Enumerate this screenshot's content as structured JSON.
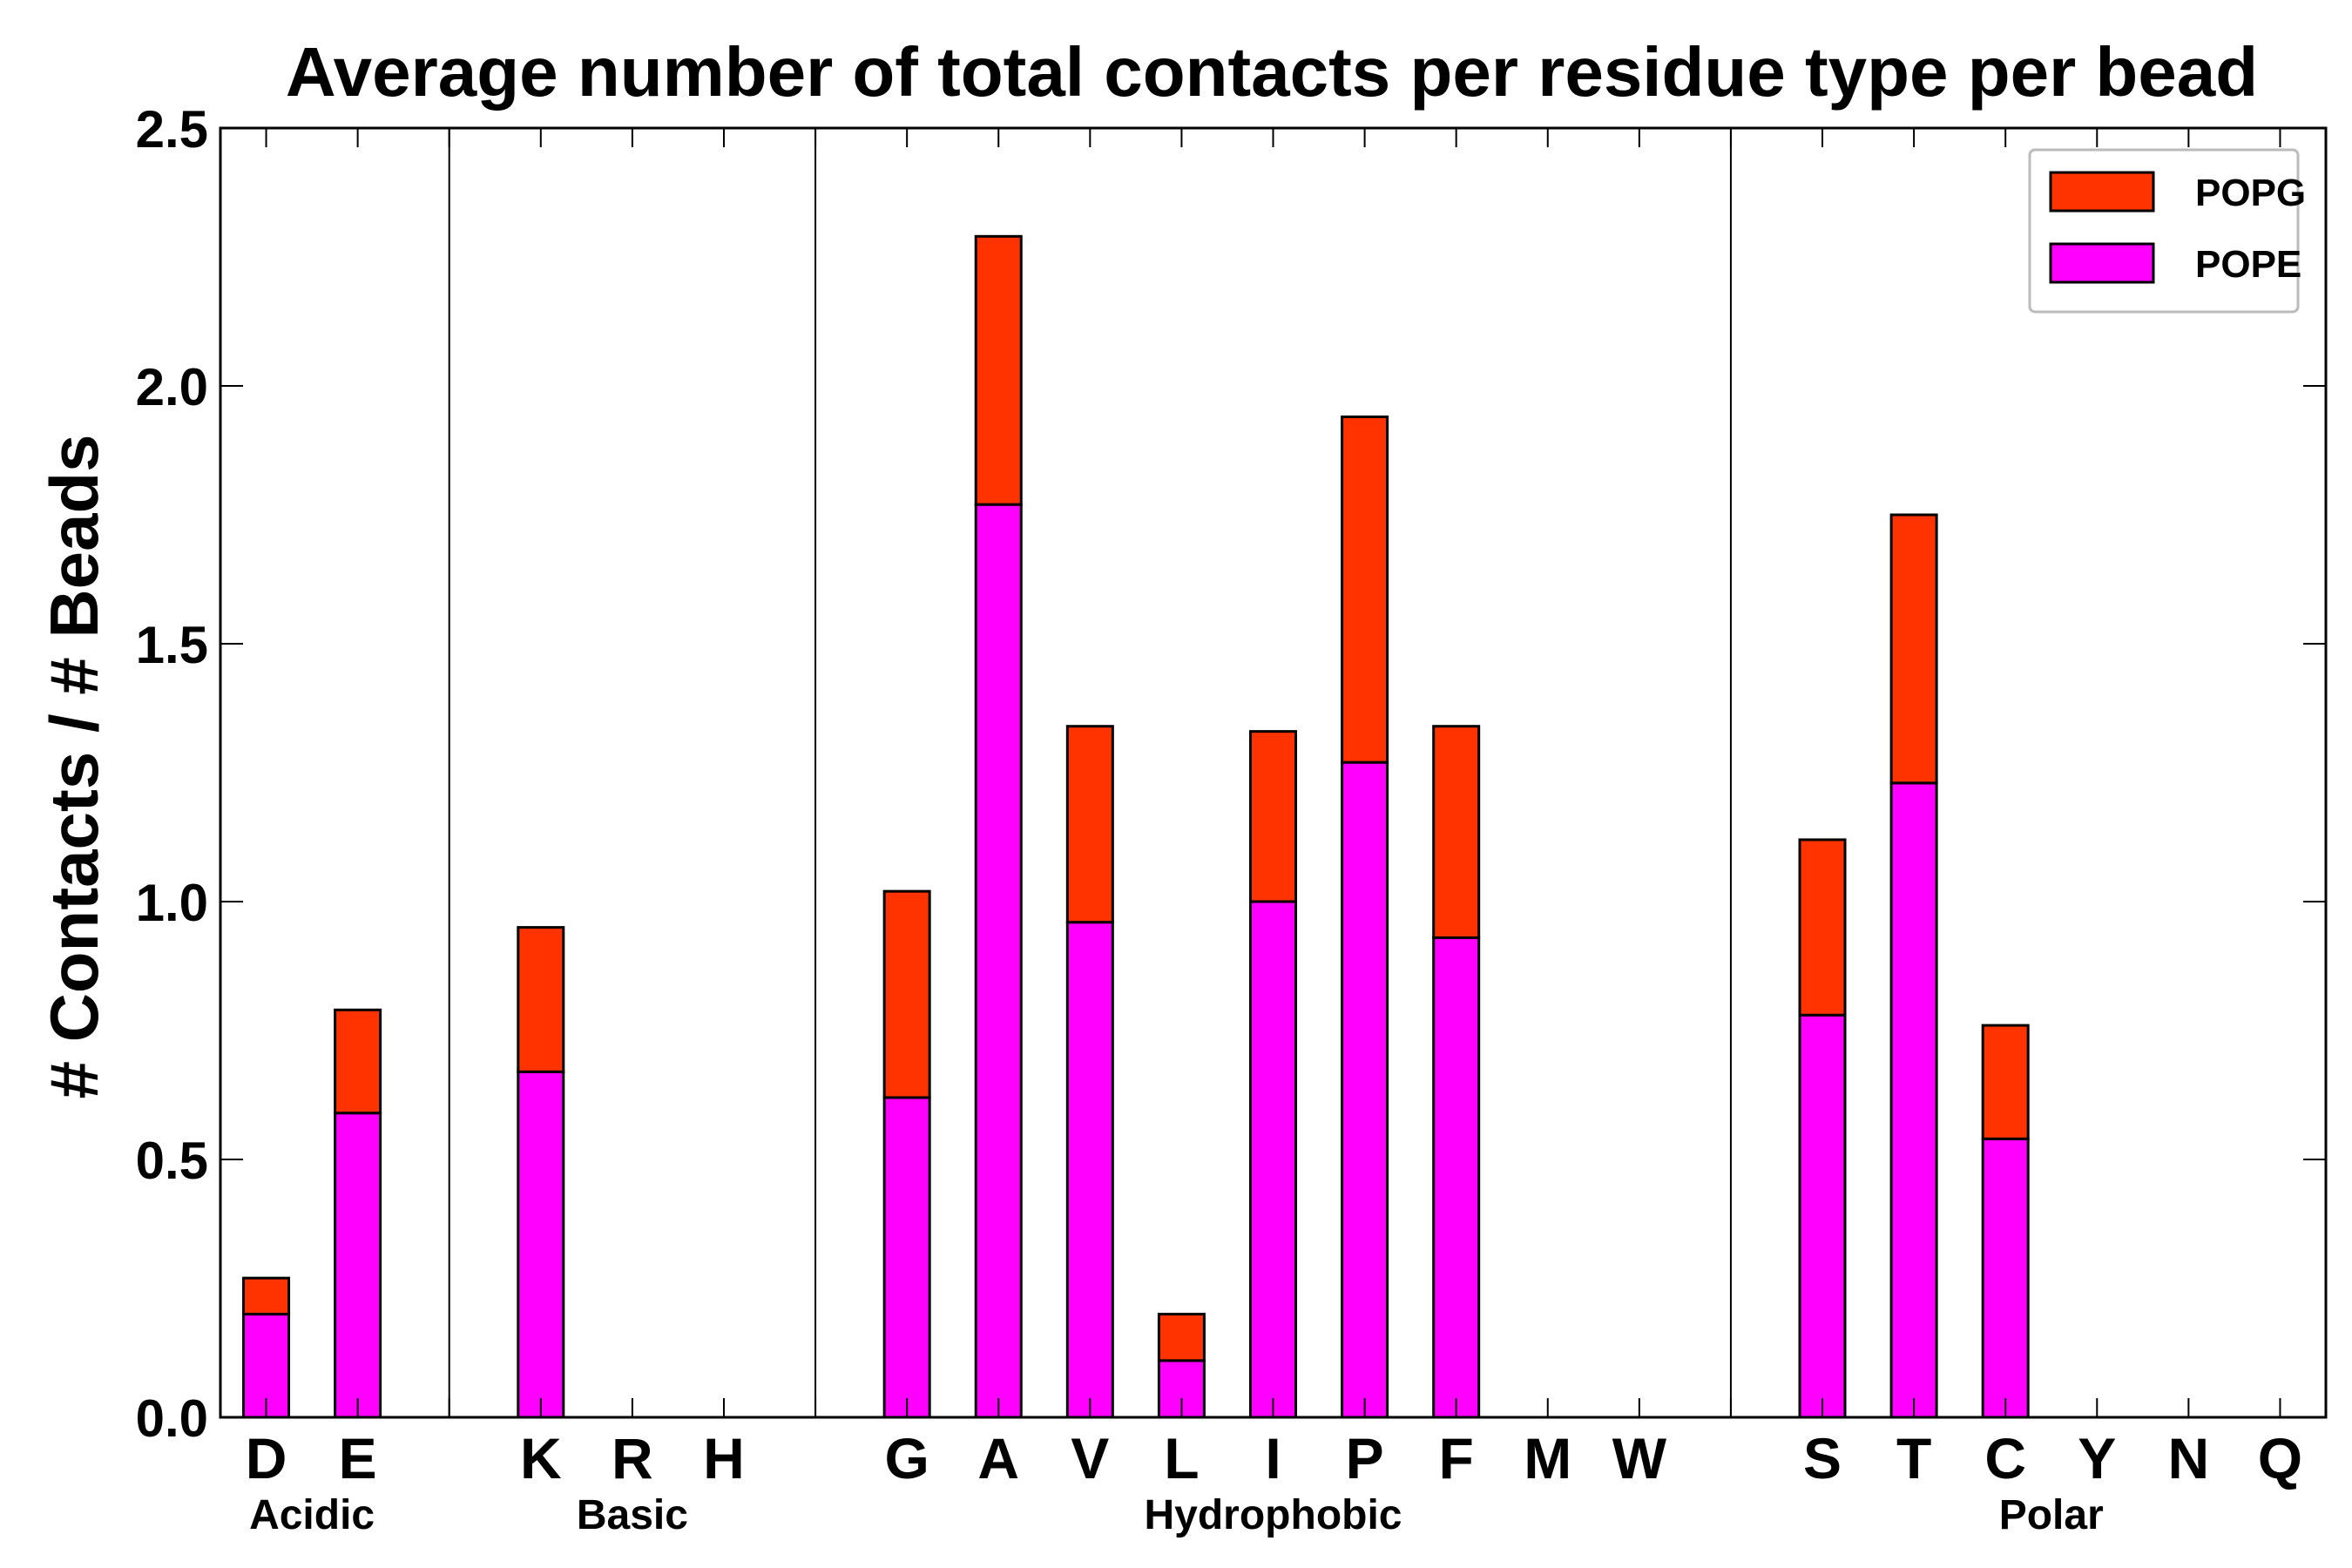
{
  "chart_data": {
    "type": "bar",
    "stacked": true,
    "title": "Average number of total contacts per residue type per bead",
    "xlabel": "",
    "ylabel": "# Contacts / # Beads",
    "ylim": [
      0,
      2.5
    ],
    "yticks": [
      "0.0",
      "0.5",
      "1.0",
      "1.5",
      "2.0",
      "2.5"
    ],
    "grid": false,
    "legend_position": "top-right",
    "categories": [
      "D",
      "E",
      "",
      "K",
      "R",
      "H",
      "",
      "G",
      "A",
      "V",
      "L",
      "I",
      "P",
      "F",
      "M",
      "W",
      "",
      "S",
      "T",
      "C",
      "Y",
      "N",
      "Q"
    ],
    "series": [
      {
        "name": "POPE",
        "color": "#ff00ff",
        "values": [
          0.2,
          0.59,
          0,
          0.67,
          0,
          0,
          0,
          0.62,
          1.77,
          0.96,
          0.11,
          1.0,
          1.27,
          0.93,
          0,
          0,
          0,
          0.78,
          1.23,
          0.54,
          0,
          0,
          0
        ]
      },
      {
        "name": "POPG",
        "color": "#ff3300",
        "values": [
          0.07,
          0.2,
          0,
          0.28,
          0,
          0,
          0,
          0.4,
          0.52,
          0.38,
          0.09,
          0.33,
          0.67,
          0.41,
          0,
          0,
          0,
          0.34,
          0.52,
          0.22,
          0,
          0,
          0
        ]
      }
    ],
    "groups": [
      {
        "label": "Acidic",
        "first": 0,
        "last": 1
      },
      {
        "label": "Basic",
        "first": 3,
        "last": 5
      },
      {
        "label": "Hydrophobic",
        "first": 7,
        "last": 15
      },
      {
        "label": "Polar",
        "first": 17,
        "last": 22
      }
    ],
    "separators_after_index": [
      2,
      6,
      16
    ]
  },
  "legend": [
    {
      "label": "POPG",
      "color": "#ff3300"
    },
    {
      "label": "POPE",
      "color": "#ff00ff"
    }
  ]
}
